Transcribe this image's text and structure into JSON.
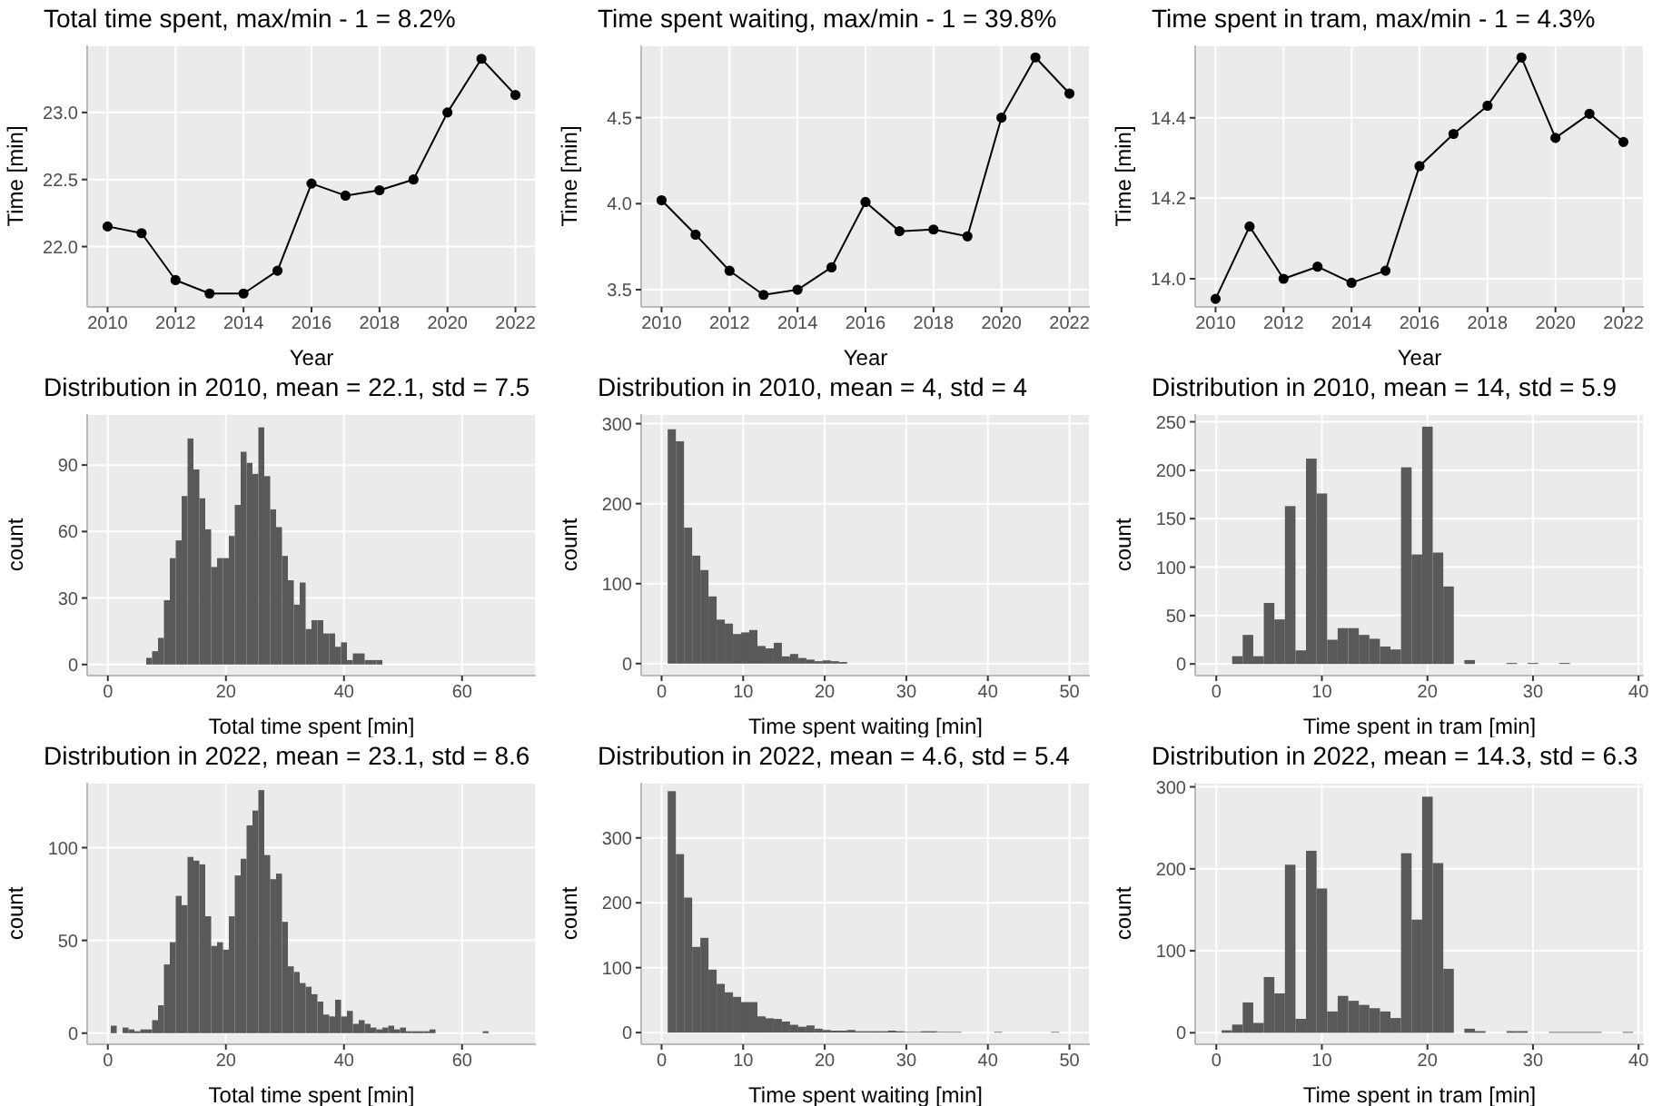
{
  "chart_data": [
    {
      "type": "line",
      "title": "Total time spent, max/min - 1 = 8.2%",
      "xlabel": "Year",
      "ylabel": "Time [min]",
      "x": [
        2010,
        2011,
        2012,
        2013,
        2014,
        2015,
        2016,
        2017,
        2018,
        2019,
        2020,
        2021,
        2022
      ],
      "series": [
        {
          "color": "#000000",
          "values": [
            22.15,
            22.1,
            21.75,
            21.65,
            21.65,
            21.82,
            22.47,
            22.38,
            22.42,
            22.5,
            23.0,
            23.4,
            23.13
          ]
        }
      ],
      "xlim": [
        2009.4,
        2022.6
      ],
      "xticks": [
        2010,
        2012,
        2014,
        2016,
        2018,
        2020,
        2022
      ],
      "ylim": [
        21.55,
        23.5
      ],
      "yticks": [
        {
          "value": 22,
          "label": "22.0"
        },
        22.5,
        {
          "value": 23,
          "label": "23.0"
        }
      ],
      "grid": true,
      "marker": "circle",
      "line_style": "solid"
    },
    {
      "type": "line",
      "title": "Time spent waiting, max/min - 1 = 39.8%",
      "xlabel": "Year",
      "ylabel": "Time [min]",
      "x": [
        2010,
        2011,
        2012,
        2013,
        2014,
        2015,
        2016,
        2017,
        2018,
        2019,
        2020,
        2021,
        2022
      ],
      "series": [
        {
          "color": "#000000",
          "values": [
            4.02,
            3.82,
            3.61,
            3.47,
            3.5,
            3.63,
            4.01,
            3.84,
            3.85,
            3.81,
            4.5,
            4.85,
            4.64
          ]
        }
      ],
      "xlim": [
        2009.4,
        2022.6
      ],
      "xticks": [
        2010,
        2012,
        2014,
        2016,
        2018,
        2020,
        2022
      ],
      "ylim": [
        3.4,
        4.92
      ],
      "yticks": [
        3.5,
        {
          "value": 4,
          "label": "4.0"
        },
        4.5
      ],
      "grid": true,
      "marker": "circle",
      "line_style": "solid"
    },
    {
      "type": "line",
      "title": "Time spent in tram, max/min - 1 = 4.3%",
      "xlabel": "Year",
      "ylabel": "Time [min]",
      "x": [
        2010,
        2011,
        2012,
        2013,
        2014,
        2015,
        2016,
        2017,
        2018,
        2019,
        2020,
        2021,
        2022
      ],
      "series": [
        {
          "color": "#000000",
          "values": [
            13.95,
            14.13,
            14.0,
            14.03,
            13.99,
            14.02,
            14.28,
            14.36,
            14.43,
            14.55,
            14.35,
            14.41,
            14.34
          ]
        }
      ],
      "xlim": [
        2009.4,
        2022.6
      ],
      "xticks": [
        2010,
        2012,
        2014,
        2016,
        2018,
        2020,
        2022
      ],
      "ylim": [
        13.93,
        14.58
      ],
      "yticks": [
        {
          "value": 14,
          "label": "14.0"
        },
        14.2,
        14.4
      ],
      "grid": true,
      "marker": "circle",
      "line_style": "solid"
    },
    {
      "type": "histogram",
      "title": "Distribution in 2010, mean = 22.1, std = 7.5",
      "xlabel": "Total time spent [min]",
      "ylabel": "count",
      "color": "#595959",
      "bins": [
        6.5,
        7.5,
        8.5,
        9.5,
        10.5,
        11.5,
        12.5,
        13.5,
        14.5,
        15.5,
        16.5,
        17.5,
        18.5,
        19.5,
        20.5,
        21.5,
        22.5,
        23.5,
        24.5,
        25.5,
        26.5,
        27.5,
        28.5,
        29.5,
        30.5,
        31.5,
        32.5,
        33.5,
        34.5,
        35.5,
        36.5,
        37.5,
        38.5,
        39.5,
        40.5,
        41.5,
        42.5,
        43.5,
        44.5,
        45.5,
        46.5
      ],
      "values": [
        3,
        6,
        12,
        29,
        48,
        56,
        76,
        102,
        88,
        75,
        61,
        44,
        48,
        48,
        58,
        72,
        96,
        91,
        86,
        107,
        85,
        70,
        62,
        49,
        38,
        27,
        37,
        16,
        20,
        20,
        14,
        14,
        8,
        10,
        2,
        5,
        5,
        2,
        2,
        2
      ],
      "xlim": [
        -3.5,
        72.5
      ],
      "xticks": [
        0,
        20,
        40,
        60
      ],
      "ylim": [
        -5,
        113
      ],
      "yticks": [
        0,
        30,
        60,
        90
      ],
      "grid": true
    },
    {
      "type": "histogram",
      "title": "Distribution in 2010, mean = 4, std = 4",
      "xlabel": "Time spent waiting [min]",
      "ylabel": "count",
      "color": "#595959",
      "bins": [
        0.75,
        1.75,
        2.75,
        3.75,
        4.75,
        5.75,
        6.75,
        7.75,
        8.75,
        9.75,
        10.75,
        11.75,
        12.75,
        13.75,
        14.75,
        15.75,
        16.75,
        17.75,
        18.75,
        19.75,
        20.75,
        21.75,
        22.75
      ],
      "values": [
        293,
        278,
        170,
        135,
        117,
        84,
        55,
        50,
        37,
        39,
        42,
        22,
        19,
        26,
        9,
        12,
        7,
        5,
        3,
        4,
        3,
        2
      ],
      "xlim": [
        -2.5,
        52.5
      ],
      "xticks": [
        0,
        10,
        20,
        30,
        40,
        50
      ],
      "ylim": [
        -15,
        312
      ],
      "yticks": [
        0,
        100,
        200,
        300
      ],
      "grid": true
    },
    {
      "type": "histogram",
      "title": "Distribution in 2010, mean = 14, std = 5.9",
      "xlabel": "Time spent in tram [min]",
      "ylabel": "count",
      "color": "#595959",
      "bins": [
        1.5,
        2.5,
        3.5,
        4.5,
        5.5,
        6.5,
        7.5,
        8.5,
        9.5,
        10.5,
        11.5,
        12.5,
        13.5,
        14.5,
        15.5,
        16.5,
        17.5,
        18.5,
        19.5,
        20.5,
        21.5,
        22.5,
        23.5,
        24.5,
        25.5,
        26.5,
        27.5,
        28.5,
        29.5,
        30.5,
        31.5,
        32.5,
        33.5
      ],
      "values": [
        8,
        30,
        8,
        63,
        46,
        163,
        14,
        212,
        176,
        25,
        37,
        37,
        30,
        26,
        18,
        15,
        203,
        113,
        245,
        115,
        80,
        0,
        4,
        0,
        0,
        0,
        1,
        0,
        1,
        0,
        0,
        1
      ],
      "xlim": [
        -2,
        40.5
      ],
      "xticks": [
        0,
        10,
        20,
        30,
        40
      ],
      "ylim": [
        -12,
        258
      ],
      "yticks": [
        0,
        50,
        100,
        150,
        200,
        250
      ],
      "grid": true
    },
    {
      "type": "histogram",
      "title": "Distribution in 2022, mean = 23.1, std = 8.6",
      "xlabel": "Total time spent [min]",
      "ylabel": "count",
      "color": "#595959",
      "bins": [
        0.5,
        1.5,
        2.5,
        3.5,
        4.5,
        5.5,
        6.5,
        7.5,
        8.5,
        9.5,
        10.5,
        11.5,
        12.5,
        13.5,
        14.5,
        15.5,
        16.5,
        17.5,
        18.5,
        19.5,
        20.5,
        21.5,
        22.5,
        23.5,
        24.5,
        25.5,
        26.5,
        27.5,
        28.5,
        29.5,
        30.5,
        31.5,
        32.5,
        33.5,
        34.5,
        35.5,
        36.5,
        37.5,
        38.5,
        39.5,
        40.5,
        41.5,
        42.5,
        43.5,
        44.5,
        45.5,
        46.5,
        47.5,
        48.5,
        49.5,
        50.5,
        51.5,
        52.5,
        53.5,
        54.5,
        55.5,
        56.5,
        57.5,
        58.5,
        59.5,
        60.5,
        61.5,
        62.5,
        63.5,
        64.5
      ],
      "values": [
        4,
        0,
        3,
        2,
        1,
        2,
        2,
        7,
        15,
        37,
        49,
        74,
        69,
        95,
        93,
        91,
        63,
        47,
        49,
        45,
        63,
        85,
        94,
        112,
        120,
        131,
        96,
        83,
        86,
        60,
        36,
        33,
        27,
        25,
        21,
        17,
        10,
        9,
        18,
        9,
        12,
        5,
        7,
        5,
        3,
        2,
        3,
        4,
        2,
        3,
        1,
        1,
        1,
        1,
        2,
        0,
        0,
        0,
        0,
        0,
        0,
        0,
        0,
        1
      ],
      "xlim": [
        -3.5,
        72.5
      ],
      "xticks": [
        0,
        20,
        40,
        60
      ],
      "ylim": [
        -6,
        135
      ],
      "yticks": [
        0,
        50,
        100
      ],
      "grid": true
    },
    {
      "type": "histogram",
      "title": "Distribution in 2022, mean = 4.6, std = 5.4",
      "xlabel": "Time spent waiting [min]",
      "ylabel": "count",
      "color": "#595959",
      "bins": [
        0.75,
        1.75,
        2.75,
        3.75,
        4.75,
        5.75,
        6.75,
        7.75,
        8.75,
        9.75,
        10.75,
        11.75,
        12.75,
        13.75,
        14.75,
        15.75,
        16.75,
        17.75,
        18.75,
        19.75,
        20.75,
        21.75,
        22.75,
        23.75,
        24.75,
        25.75,
        26.75,
        27.75,
        28.75,
        29.75,
        30.75,
        31.75,
        32.75,
        33.75,
        34.75,
        35.75,
        36.75,
        37.75,
        38.75,
        39.75,
        40.75,
        41.75,
        42.75,
        43.75,
        44.75,
        45.75,
        46.75,
        47.75,
        48.75
      ],
      "values": [
        372,
        275,
        208,
        132,
        146,
        97,
        75,
        62,
        55,
        47,
        47,
        25,
        22,
        21,
        17,
        12,
        9,
        11,
        6,
        4,
        3,
        3,
        4,
        2,
        2,
        2,
        2,
        3,
        2,
        1,
        1,
        2,
        2,
        1,
        1,
        1,
        0,
        0,
        0,
        0,
        1,
        0,
        0,
        0,
        0,
        0,
        0,
        1
      ],
      "xlim": [
        -2.5,
        52.5
      ],
      "xticks": [
        0,
        10,
        20,
        30,
        40,
        50
      ],
      "ylim": [
        -18,
        385
      ],
      "yticks": [
        0,
        100,
        200,
        300
      ],
      "grid": true
    },
    {
      "type": "histogram",
      "title": "Distribution in 2022, mean = 14.3, std = 6.3",
      "xlabel": "Time spent in tram [min]",
      "ylabel": "count",
      "color": "#595959",
      "bins": [
        0.5,
        1.5,
        2.5,
        3.5,
        4.5,
        5.5,
        6.5,
        7.5,
        8.5,
        9.5,
        10.5,
        11.5,
        12.5,
        13.5,
        14.5,
        15.5,
        16.5,
        17.5,
        18.5,
        19.5,
        20.5,
        21.5,
        22.5,
        23.5,
        24.5,
        25.5,
        26.5,
        27.5,
        28.5,
        29.5,
        30.5,
        31.5,
        32.5,
        33.5,
        34.5,
        35.5,
        36.5,
        37.5,
        38.5,
        39.5
      ],
      "values": [
        3,
        10,
        37,
        12,
        68,
        48,
        205,
        17,
        222,
        176,
        26,
        45,
        39,
        34,
        30,
        26,
        18,
        219,
        138,
        288,
        207,
        78,
        0,
        5,
        2,
        0,
        0,
        2,
        2,
        0,
        0,
        1,
        1,
        1,
        1,
        1,
        0,
        0,
        1
      ],
      "xlim": [
        -2,
        40.5
      ],
      "xticks": [
        0,
        10,
        20,
        30,
        40
      ],
      "ylim": [
        -14,
        305
      ],
      "yticks": [
        0,
        100,
        200,
        300
      ],
      "grid": true
    }
  ]
}
